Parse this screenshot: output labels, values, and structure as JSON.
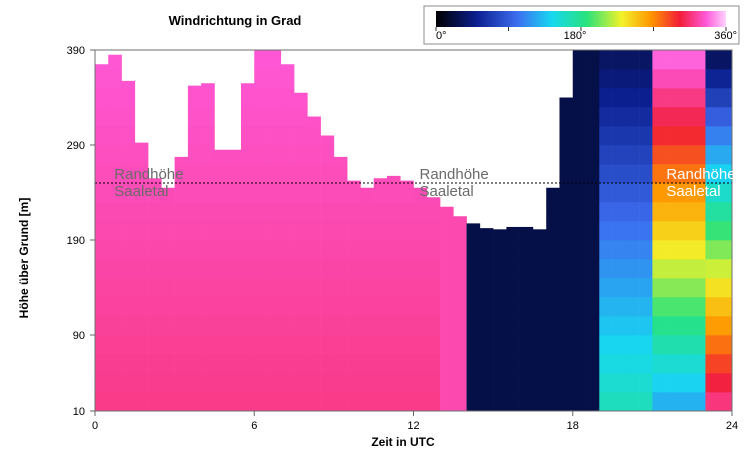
{
  "chart_data": {
    "type": "heatmap",
    "title": "Windrichtung in Grad",
    "xlabel": "Zeit in UTC",
    "ylabel": "Höhe über Grund [m]",
    "x_ticks": [
      "0",
      "6",
      "12",
      "18",
      "24"
    ],
    "y_ticks": [
      "10",
      "90",
      "190",
      "290",
      "390"
    ],
    "xlim": [
      0,
      24
    ],
    "ylim": [
      10,
      390
    ],
    "colorbar": {
      "ticks": [
        "0°",
        "180°",
        "360°"
      ],
      "range": [
        0,
        360
      ],
      "colors": [
        "#000000",
        "#0b1f8f",
        "#3d6df0",
        "#17d8f0",
        "#28e27b",
        "#f2f22a",
        "#ff9700",
        "#f21d36",
        "#ff57d7",
        "#ffd2ff"
      ]
    },
    "annotations": [
      {
        "line1": "Randhöhe",
        "line2": "Saaletal",
        "time": 0.5
      },
      {
        "line1": "Randhöhe",
        "line2": "Saaletal",
        "time": 12.0
      },
      {
        "line1": "Randhöhe",
        "line2": "Saaletal",
        "time": 21.3
      }
    ],
    "reference_height": 250,
    "ceiling_profile": [
      [
        0.0,
        370
      ],
      [
        1.0,
        390
      ],
      [
        2.0,
        260
      ],
      [
        3.0,
        240
      ],
      [
        4.0,
        390
      ],
      [
        5.0,
        250
      ],
      [
        6.0,
        390
      ],
      [
        7.0,
        390
      ],
      [
        8.0,
        330
      ],
      [
        9.0,
        290
      ],
      [
        10.0,
        240
      ],
      [
        11.0,
        260
      ],
      [
        12.0,
        250
      ],
      [
        13.0,
        230
      ],
      [
        14.0,
        210
      ],
      [
        15.0,
        200
      ],
      [
        16.0,
        205
      ],
      [
        17.0,
        200
      ],
      [
        17.5,
        290
      ],
      [
        18.0,
        390
      ],
      [
        24.0,
        390
      ]
    ],
    "regimes": [
      {
        "from": 0.0,
        "to": 13.0,
        "low_deg": 300,
        "high_deg": 320
      },
      {
        "from": 13.0,
        "to": 14.0,
        "low_deg": 310,
        "high_deg": 310
      },
      {
        "from": 14.0,
        "to": 19.0,
        "low_deg": 20,
        "high_deg": 20
      },
      {
        "from": 19.0,
        "to": 21.0,
        "low_deg": 140,
        "high_deg": 25
      },
      {
        "from": 21.0,
        "to": 23.0,
        "low_deg": 100,
        "high_deg": 330
      },
      {
        "from": 23.0,
        "to": 24.0,
        "low_deg": 305,
        "high_deg": 20
      }
    ]
  }
}
